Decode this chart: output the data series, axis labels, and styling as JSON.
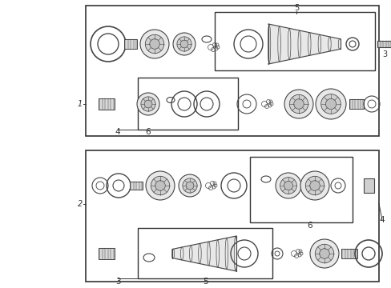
{
  "bg_color": "#ffffff",
  "line_color": "#333333",
  "part_color": "#444444",
  "fig_width": 4.89,
  "fig_height": 3.6
}
